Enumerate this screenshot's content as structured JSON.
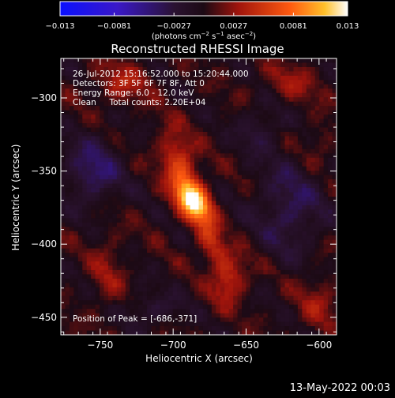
{
  "colorbar": {
    "tick_labels": [
      "−0.013",
      "−0.0081",
      "−0.0027",
      "0.0027",
      "0.0081",
      "0.013"
    ],
    "unit_prefix": "(photons cm",
    "unit_exp1": "−2",
    "unit_mid1": " s",
    "unit_exp2": "−1",
    "unit_mid2": " asec",
    "unit_exp3": "−2",
    "unit_suffix": ")"
  },
  "title": "Reconstructed RHESSI Image",
  "annotations": [
    "26-Jul-2012 15:16:52.000 to 15:20:44.000",
    "Detectors: 3F 5F 6F 7F 8F, Att 0",
    "Energy Range: 6.0 - 12.0 keV",
    "Clean     Total counts: 2.20E+04"
  ],
  "peak_label": "Position of Peak = [-686,-371]",
  "xaxis": {
    "label": "Heliocentric X (arcsec)",
    "tick_labels": [
      "−750",
      "−700",
      "−650",
      "−600"
    ]
  },
  "yaxis": {
    "label": "Heliocentric Y (arcsec)",
    "tick_labels": [
      "−300",
      "−350",
      "−400",
      "−450"
    ]
  },
  "footer_date": "13-May-2022 00:03",
  "chart_data": {
    "type": "heatmap",
    "title": "Reconstructed RHESSI Image",
    "xlabel": "Heliocentric X (arcsec)",
    "ylabel": "Heliocentric Y (arcsec)",
    "xlim": [
      -777,
      -588
    ],
    "ylim": [
      -462,
      -273
    ],
    "xticks": [
      -750,
      -700,
      -650,
      -600
    ],
    "yticks": [
      -300,
      -350,
      -400,
      -450
    ],
    "colorbar": {
      "min": -0.013,
      "max": 0.013,
      "ticks": [
        -0.013,
        -0.0081,
        -0.0027,
        0.0027,
        0.0081,
        0.013
      ],
      "colors": [
        "#0a10ff",
        "#5a1e9a",
        "#1a0c18",
        "#c01a10",
        "#ff9a18",
        "#ffffff"
      ]
    },
    "peak": {
      "x": -686,
      "y": -371,
      "value": 0.013
    },
    "sources": [
      {
        "x": -686,
        "y": -371,
        "sx": 7,
        "sy": 11,
        "rot": 35,
        "amp": 0.0125
      },
      {
        "x": -696,
        "y": -345,
        "sx": 8,
        "sy": 16,
        "rot": 20,
        "amp": 0.0058
      },
      {
        "x": -673,
        "y": -401,
        "sx": 6,
        "sy": 13,
        "rot": 25,
        "amp": 0.0048
      },
      {
        "x": -661,
        "y": -425,
        "sx": 8,
        "sy": 12,
        "rot": -20,
        "amp": 0.0042
      },
      {
        "x": -735,
        "y": -290,
        "sx": 14,
        "sy": 10,
        "rot": 0,
        "amp": 0.0032
      },
      {
        "x": -620,
        "y": -290,
        "sx": 14,
        "sy": 9,
        "rot": 0,
        "amp": 0.0026
      },
      {
        "x": -745,
        "y": -420,
        "sx": 8,
        "sy": 20,
        "rot": 0,
        "amp": 0.0022
      },
      {
        "x": -600,
        "y": -330,
        "sx": 8,
        "sy": 10,
        "rot": 0,
        "amp": 0.0018
      },
      {
        "x": -600,
        "y": -440,
        "sx": 10,
        "sy": 14,
        "rot": 0,
        "amp": 0.0024
      },
      {
        "x": -755,
        "y": -350,
        "sx": 14,
        "sy": 16,
        "rot": 0,
        "amp": -0.0042
      },
      {
        "x": -620,
        "y": -375,
        "sx": 16,
        "sy": 22,
        "rot": 0,
        "amp": -0.0035
      },
      {
        "x": -715,
        "y": -445,
        "sx": 14,
        "sy": 8,
        "rot": 0,
        "amp": -0.0025
      },
      {
        "x": -640,
        "y": -320,
        "sx": 10,
        "sy": 12,
        "rot": 0,
        "amp": -0.0025
      }
    ]
  }
}
